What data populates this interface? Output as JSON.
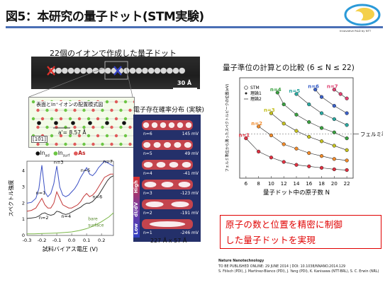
{
  "slide": {
    "title": "図5：本研究の量子ドット(STM実験)",
    "logo_caption": "Innovative R&D by NTT"
  },
  "stm_image": {
    "title": "22個のイオンで作成した量子ドット",
    "scale_bar": "30 Å",
    "colors": {
      "marker_red": "#e0302a",
      "marker_blue": "#3340c8"
    }
  },
  "lattice": {
    "title": "表面とIn⁺イオンの配置模式図",
    "direction": "[10̄1]",
    "spacing": "a'= 8.57 Å",
    "legend": {
      "In_ad": "In",
      "In_ad_sub": "ad",
      "In_surf": "In",
      "In_surf_sub": "surf",
      "As": "As"
    },
    "colors": {
      "In_ad": "#111111",
      "In_surf": "#6cc644",
      "As": "#e05a5a"
    }
  },
  "probability": {
    "title": "電子存在確率分布 (実験)",
    "dim": "227 Å x 57 Å",
    "side_high": "High",
    "side_dIdV": "dI/dV",
    "side_low": "Low",
    "rows": [
      {
        "n": "n=6",
        "mv": "145 mV"
      },
      {
        "n": "n=5",
        "mv": "49 mV"
      },
      {
        "n": "n=4",
        "mv": "-41 mV"
      },
      {
        "n": "n=3",
        "mv": "-123 mV"
      },
      {
        "n": "n=2",
        "mv": "-191 mV"
      },
      {
        "n": "n=1",
        "mv": "-246 mV"
      }
    ]
  },
  "spectra": {
    "type": "line",
    "ylabel": "スペクトル強度",
    "xlabel": "試料バイアス電圧 (V)",
    "xticks": [
      "-0.3",
      "-0.2",
      "-0.1",
      "0.0",
      "0.1",
      "0.2"
    ],
    "yticks": [
      "0",
      "1",
      "2",
      "3",
      "4"
    ],
    "xlim": [
      -0.3,
      0.28
    ],
    "ylim": [
      0,
      4.6
    ],
    "labels": [
      "n=1",
      "n=2",
      "n=3",
      "n=4",
      "n=5",
      "n=6",
      "n=7"
    ],
    "bare_label_1": "bare",
    "bare_label_2": "surface",
    "series": [
      {
        "color": "#3a4fc4",
        "x": [
          -0.3,
          -0.27,
          -0.24,
          -0.22,
          -0.2,
          -0.18,
          -0.16,
          -0.14,
          -0.12,
          -0.1,
          -0.08,
          -0.06,
          -0.04,
          -0.02,
          0.0,
          0.02,
          0.04,
          0.06,
          0.08,
          0.1,
          0.12,
          0.14,
          0.16,
          0.18,
          0.2,
          0.22,
          0.24,
          0.26,
          0.28
        ],
        "y": [
          2.0,
          2.05,
          2.3,
          2.9,
          4.35,
          2.7,
          2.4,
          2.6,
          3.2,
          4.3,
          3.0,
          2.5,
          2.4,
          2.5,
          2.7,
          2.9,
          3.2,
          3.6,
          3.9,
          4.2,
          3.8,
          3.7,
          3.9,
          4.2,
          4.4,
          4.6,
          4.5,
          4.4,
          4.3
        ]
      },
      {
        "color": "#c43a3a",
        "x": [
          -0.3,
          -0.27,
          -0.24,
          -0.22,
          -0.2,
          -0.18,
          -0.16,
          -0.14,
          -0.12,
          -0.1,
          -0.08,
          -0.06,
          -0.04,
          -0.02,
          0.0,
          0.02,
          0.04,
          0.06,
          0.08,
          0.1,
          0.12,
          0.14,
          0.16,
          0.18,
          0.2,
          0.22,
          0.24,
          0.26,
          0.28
        ],
        "y": [
          1.5,
          1.55,
          1.7,
          2.0,
          2.3,
          1.9,
          1.7,
          1.7,
          2.0,
          2.7,
          2.3,
          1.9,
          1.8,
          1.7,
          1.7,
          1.8,
          1.9,
          2.1,
          2.4,
          2.6,
          2.4,
          2.5,
          2.7,
          3.0,
          3.3,
          3.6,
          3.7,
          3.8,
          3.8
        ]
      },
      {
        "color": "#333333",
        "x": [
          -0.3,
          -0.27,
          -0.24,
          -0.22,
          -0.2,
          -0.18,
          -0.16,
          -0.14,
          -0.12,
          -0.1,
          -0.08,
          -0.06,
          -0.04,
          -0.02,
          0.0,
          0.02,
          0.04,
          0.06,
          0.08,
          0.1,
          0.12,
          0.14,
          0.16,
          0.18,
          0.2,
          0.22,
          0.24,
          0.26,
          0.28
        ],
        "y": [
          1.05,
          1.08,
          1.12,
          1.2,
          1.35,
          1.4,
          1.3,
          1.25,
          1.3,
          1.5,
          1.45,
          1.35,
          1.3,
          1.35,
          1.45,
          1.55,
          1.65,
          1.75,
          1.9,
          2.0,
          2.0,
          2.1,
          2.3,
          2.5,
          2.8,
          3.1,
          3.4,
          3.6,
          3.7
        ]
      },
      {
        "color": "#7ab648",
        "x": [
          -0.3,
          -0.25,
          -0.2,
          -0.15,
          -0.1,
          -0.05,
          0.0,
          0.05,
          0.1,
          0.15,
          0.2,
          0.25,
          0.28
        ],
        "y": [
          0.1,
          0.1,
          0.12,
          0.13,
          0.15,
          0.18,
          0.22,
          0.3,
          0.42,
          0.6,
          0.85,
          1.15,
          1.4
        ]
      }
    ]
  },
  "calc": {
    "type": "scatter",
    "title_main": "量子準位の計算との比較",
    "title_range": "(6 ≤ N ≤ 22)",
    "ylabel": "フェルミ準位から測ったスペクトルピークの位置(eV)",
    "xlabel": "量子ドット中の原子数 N",
    "xticks": [
      "6",
      "8",
      "10",
      "12",
      "14",
      "16",
      "18",
      "20",
      "22"
    ],
    "xlim": [
      5,
      23
    ],
    "ylim": [
      -0.3,
      0.38
    ],
    "fermi_label": "フェルミ準位",
    "fermi_level": 0.0,
    "legend": [
      "STM",
      "理論1",
      "理論2"
    ],
    "series": [
      {
        "name": "n=1",
        "color": "#e03040",
        "x": [
          6,
          8,
          10,
          12,
          14,
          16,
          18,
          20,
          22
        ],
        "y": [
          -0.03,
          -0.12,
          -0.16,
          -0.19,
          -0.21,
          -0.22,
          -0.23,
          -0.24,
          -0.245
        ]
      },
      {
        "name": "n=2",
        "color": "#f08a2a",
        "x": [
          8,
          10,
          12,
          14,
          16,
          18,
          20,
          22
        ],
        "y": [
          0.05,
          -0.01,
          -0.07,
          -0.1,
          -0.13,
          -0.15,
          -0.17,
          -0.18
        ]
      },
      {
        "name": "n=3",
        "color": "#c4c020",
        "x": [
          10,
          12,
          14,
          16,
          18,
          20,
          22
        ],
        "y": [
          0.14,
          0.07,
          0.02,
          -0.02,
          -0.05,
          -0.08,
          -0.11
        ]
      },
      {
        "name": "n=4",
        "color": "#3aa040",
        "x": [
          11,
          12,
          14,
          16,
          18,
          20,
          22
        ],
        "y": [
          0.28,
          0.2,
          0.13,
          0.08,
          0.04,
          0.01,
          -0.03
        ]
      },
      {
        "name": "n=5",
        "color": "#2aa8a0",
        "x": [
          14,
          16,
          18,
          20,
          22
        ],
        "y": [
          0.27,
          0.2,
          0.14,
          0.1,
          0.06
        ]
      },
      {
        "name": "n=6",
        "color": "#3a60c8",
        "x": [
          17,
          18,
          20,
          22
        ],
        "y": [
          0.3,
          0.25,
          0.19,
          0.14
        ]
      },
      {
        "name": "n=7",
        "color": "#e04070",
        "x": [
          20,
          21,
          22
        ],
        "y": [
          0.3,
          0.27,
          0.24
        ]
      }
    ]
  },
  "message": {
    "line1": "原子の数と位置を精密に制御",
    "line2": "した量子ドットを実現"
  },
  "citation": {
    "journal": "Nature Nanotechnology",
    "line1": "TO BE PUBLISHED ONLINE: 29 JUNE 2014 | DOI: 10.1038/NNANO.2014.129",
    "line2": "S. Fölsch (PDI), J. Martínez-Blanco (PDI), J. Yang (PDI), K. Kanisawa (NTT-BRL), S. C. Erwin (NRL)"
  }
}
